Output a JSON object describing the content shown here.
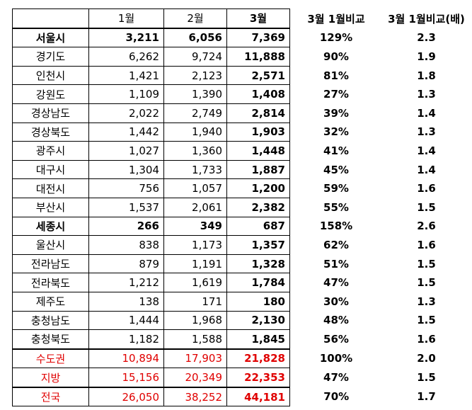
{
  "header": {
    "jan": "1월",
    "feb": "2월",
    "mar": "3월",
    "pct": "3월 1월비교",
    "ratio": "3월 1월비교(배)"
  },
  "rows": [
    {
      "region": "서울시",
      "jan": "3,211",
      "feb": "6,056",
      "mar": "7,369",
      "pct": "129%",
      "ratio": "2.3",
      "bold": true
    },
    {
      "region": "경기도",
      "jan": "6,262",
      "feb": "9,724",
      "mar": "11,888",
      "pct": "90%",
      "ratio": "1.9"
    },
    {
      "region": "인천시",
      "jan": "1,421",
      "feb": "2,123",
      "mar": "2,571",
      "pct": "81%",
      "ratio": "1.8"
    },
    {
      "region": "강원도",
      "jan": "1,109",
      "feb": "1,390",
      "mar": "1,408",
      "pct": "27%",
      "ratio": "1.3"
    },
    {
      "region": "경상남도",
      "jan": "2,022",
      "feb": "2,749",
      "mar": "2,814",
      "pct": "39%",
      "ratio": "1.4"
    },
    {
      "region": "경상북도",
      "jan": "1,442",
      "feb": "1,940",
      "mar": "1,903",
      "pct": "32%",
      "ratio": "1.3"
    },
    {
      "region": "광주시",
      "jan": "1,027",
      "feb": "1,360",
      "mar": "1,448",
      "pct": "41%",
      "ratio": "1.4"
    },
    {
      "region": "대구시",
      "jan": "1,304",
      "feb": "1,733",
      "mar": "1,887",
      "pct": "45%",
      "ratio": "1.4"
    },
    {
      "region": "대전시",
      "jan": "756",
      "feb": "1,057",
      "mar": "1,200",
      "pct": "59%",
      "ratio": "1.6"
    },
    {
      "region": "부산시",
      "jan": "1,537",
      "feb": "2,061",
      "mar": "2,382",
      "pct": "55%",
      "ratio": "1.5"
    },
    {
      "region": "세종시",
      "jan": "266",
      "feb": "349",
      "mar": "687",
      "pct": "158%",
      "ratio": "2.6",
      "bold": true
    },
    {
      "region": "울산시",
      "jan": "838",
      "feb": "1,173",
      "mar": "1,357",
      "pct": "62%",
      "ratio": "1.6"
    },
    {
      "region": "전라남도",
      "jan": "879",
      "feb": "1,191",
      "mar": "1,328",
      "pct": "51%",
      "ratio": "1.5"
    },
    {
      "region": "전라북도",
      "jan": "1,212",
      "feb": "1,619",
      "mar": "1,784",
      "pct": "47%",
      "ratio": "1.5"
    },
    {
      "region": "제주도",
      "jan": "138",
      "feb": "171",
      "mar": "180",
      "pct": "30%",
      "ratio": "1.3"
    },
    {
      "region": "충청남도",
      "jan": "1,444",
      "feb": "1,968",
      "mar": "2,130",
      "pct": "48%",
      "ratio": "1.5"
    },
    {
      "region": "충청북도",
      "jan": "1,182",
      "feb": "1,588",
      "mar": "1,845",
      "pct": "56%",
      "ratio": "1.6"
    },
    {
      "region": "수도권",
      "jan": "10,894",
      "feb": "17,903",
      "mar": "21,828",
      "pct": "100%",
      "ratio": "2.0",
      "red": true
    },
    {
      "region": "지방",
      "jan": "15,156",
      "feb": "20,349",
      "mar": "22,353",
      "pct": "47%",
      "ratio": "1.5",
      "red": true
    },
    {
      "region": "전국",
      "jan": "26,050",
      "feb": "38,252",
      "mar": "44,181",
      "pct": "70%",
      "ratio": "1.7",
      "red": true
    }
  ],
  "colors": {
    "summary_text": "#e00000",
    "grid_line": "#000000"
  }
}
